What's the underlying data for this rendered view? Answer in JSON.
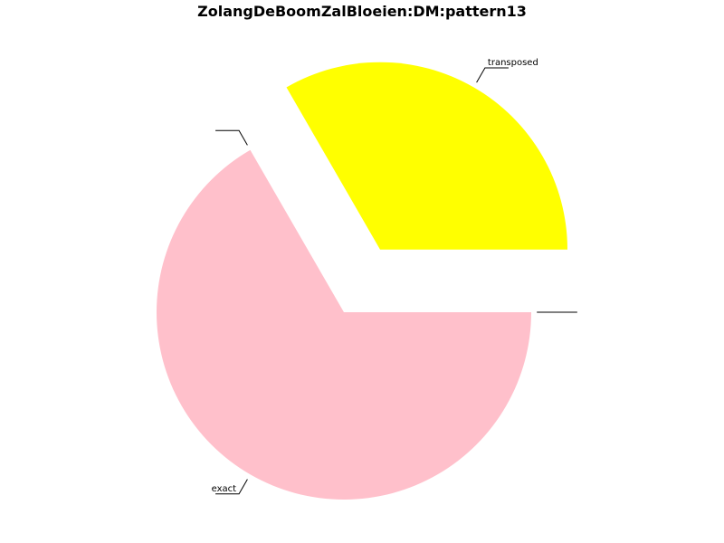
{
  "chart_data": {
    "type": "pie",
    "title": "ZolangDeBoomZalBloeien:DM:pattern13",
    "start_angle_deg": 0,
    "direction": "counterclockwise",
    "slices": [
      {
        "label": "transposed",
        "value": 1,
        "color": "#ffff00",
        "explode": true,
        "label_visible": true
      },
      {
        "label": "",
        "value": 0,
        "color": "#ffffff",
        "explode": false,
        "label_visible": false
      },
      {
        "label": "exact",
        "value": 2,
        "color": "#ffc0cb",
        "explode": false,
        "label_visible": true
      },
      {
        "label": "",
        "value": 0,
        "color": "#ffffff",
        "explode": false,
        "label_visible": false
      }
    ]
  }
}
